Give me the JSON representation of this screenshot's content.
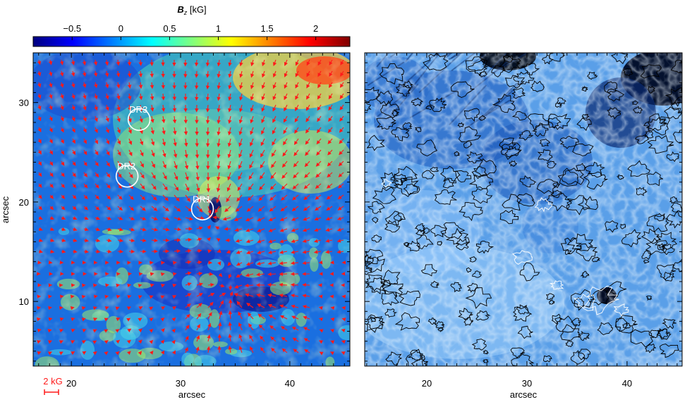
{
  "chart_data": [
    {
      "type": "heatmap",
      "panel": "left",
      "colorbar": {
        "label_main": "B",
        "label_sub": "z",
        "label_unit": "[kG]",
        "ticks": [
          "−0.5",
          "0",
          "0.5",
          "1",
          "1.5",
          "2"
        ],
        "tick_values": [
          -0.5,
          0,
          0.5,
          1,
          1.5,
          2
        ],
        "range": [
          -0.9,
          2.35
        ],
        "colormap": [
          "#00007f",
          "#0000ff",
          "#007fff",
          "#00ffff",
          "#7fff7f",
          "#ffff00",
          "#ff7f00",
          "#ff0000",
          "#7f0000"
        ]
      },
      "xlabel": "arcsec",
      "ylabel": "arcsec",
      "xlim": [
        16.5,
        45.5
      ],
      "ylim": [
        3.5,
        35
      ],
      "x_ticks": [
        "20",
        "30",
        "40"
      ],
      "x_tick_values": [
        20,
        30,
        40
      ],
      "y_ticks": [
        "10",
        "20",
        "30"
      ],
      "y_tick_values": [
        10,
        20,
        30
      ],
      "vector_field": {
        "color": "#ff1a1a",
        "description_scale_label": "2 kG",
        "scale_value_kG": 2
      },
      "regions": [
        {
          "label": "DR3",
          "x": 26.2,
          "y": 28.3,
          "radius": 1.0
        },
        {
          "label": "DR2",
          "x": 25.1,
          "y": 22.6,
          "radius": 1.0
        },
        {
          "label": "DR1",
          "x": 32.0,
          "y": 19.3,
          "radius": 1.0
        }
      ]
    },
    {
      "type": "heatmap",
      "panel": "right",
      "xlabel": "arcsec",
      "xlim": [
        13.8,
        45.5
      ],
      "ylim": [
        3.5,
        35
      ],
      "x_ticks": [
        "20",
        "30",
        "40"
      ],
      "x_tick_values": [
        20,
        30,
        40
      ],
      "colormap": [
        "#000a2e",
        "#0b3f8f",
        "#2f7fdc",
        "#7fbfff",
        "#d9efff"
      ],
      "contours": [
        {
          "color": "#000000"
        },
        {
          "color": "#ffffff"
        }
      ]
    }
  ]
}
